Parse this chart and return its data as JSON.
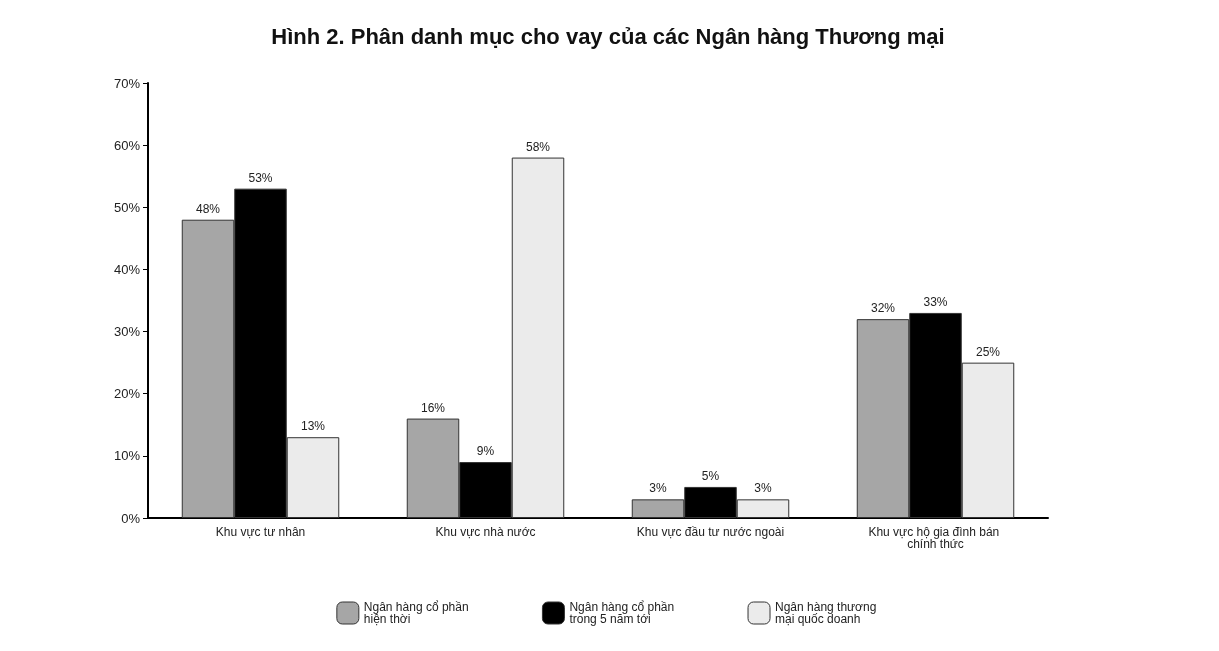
{
  "chart_data": {
    "type": "bar",
    "title": "Hình 2. Phân danh mục cho vay của các Ngân hàng Thương mại",
    "categories": [
      "Khu vực tư nhân",
      "Khu vực nhà nước",
      "Khu vực đầu tư nước ngoài",
      "Khu vực hộ gia đình bán chính thức"
    ],
    "series": [
      {
        "name": "Ngân hàng cổ phần hiện thời",
        "color": "#a6a6a6",
        "values": [
          48,
          16,
          3,
          32
        ],
        "value_labels": [
          "48%",
          "16%",
          "3%",
          "32%"
        ]
      },
      {
        "name": "Ngân hàng cổ phần trong 5 năm tới",
        "color": "#000000",
        "values": [
          53,
          9,
          5,
          33
        ],
        "value_labels": [
          "53%",
          "9%",
          "5%",
          "33%"
        ]
      },
      {
        "name": "Ngân hàng thương mại quốc doanh",
        "color": "#ebebeb",
        "values": [
          13,
          58,
          3,
          25
        ],
        "value_labels": [
          "13%",
          "58%",
          "3%",
          "25%"
        ]
      }
    ],
    "ylim": [
      0,
      70
    ],
    "yticks": [
      {
        "value": 0,
        "label": "0%"
      },
      {
        "value": 10,
        "label": "10%"
      },
      {
        "value": 20,
        "label": "20%"
      },
      {
        "value": 30,
        "label": "30%"
      },
      {
        "value": 40,
        "label": "40%"
      },
      {
        "value": 50,
        "label": "50%"
      },
      {
        "value": 60,
        "label": "60%"
      },
      {
        "value": 70,
        "label": "70%"
      }
    ],
    "grid": false,
    "legend": "bottom"
  }
}
